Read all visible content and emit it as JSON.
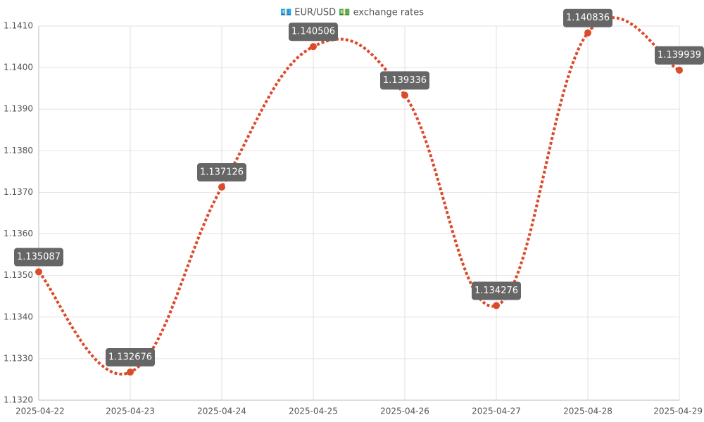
{
  "chart_data": {
    "type": "line",
    "title": "💶 EUR/USD 💵 exchange rates",
    "categories": [
      "2025-04-22",
      "2025-04-23",
      "2025-04-24",
      "2025-04-25",
      "2025-04-26",
      "2025-04-27",
      "2025-04-28",
      "2025-04-29"
    ],
    "values": [
      1.135087,
      1.132676,
      1.137126,
      1.140506,
      1.139336,
      1.134276,
      1.140836,
      1.139939
    ],
    "color": "#db4a2b",
    "ylim": [
      1.132,
      1.141
    ],
    "yticks": [
      {
        "value": 1.132,
        "label": "1.1320"
      },
      {
        "value": 1.133,
        "label": "1.1330"
      },
      {
        "value": 1.134,
        "label": "1.1340"
      },
      {
        "value": 1.135,
        "label": "1.1350"
      },
      {
        "value": 1.136,
        "label": "1.1360"
      },
      {
        "value": 1.137,
        "label": "1.1370"
      },
      {
        "value": 1.138,
        "label": "1.1380"
      },
      {
        "value": 1.139,
        "label": "1.1390"
      },
      {
        "value": 1.14,
        "label": "1.1400"
      },
      {
        "value": 1.141,
        "label": "1.1410"
      }
    ],
    "grid": true
  }
}
